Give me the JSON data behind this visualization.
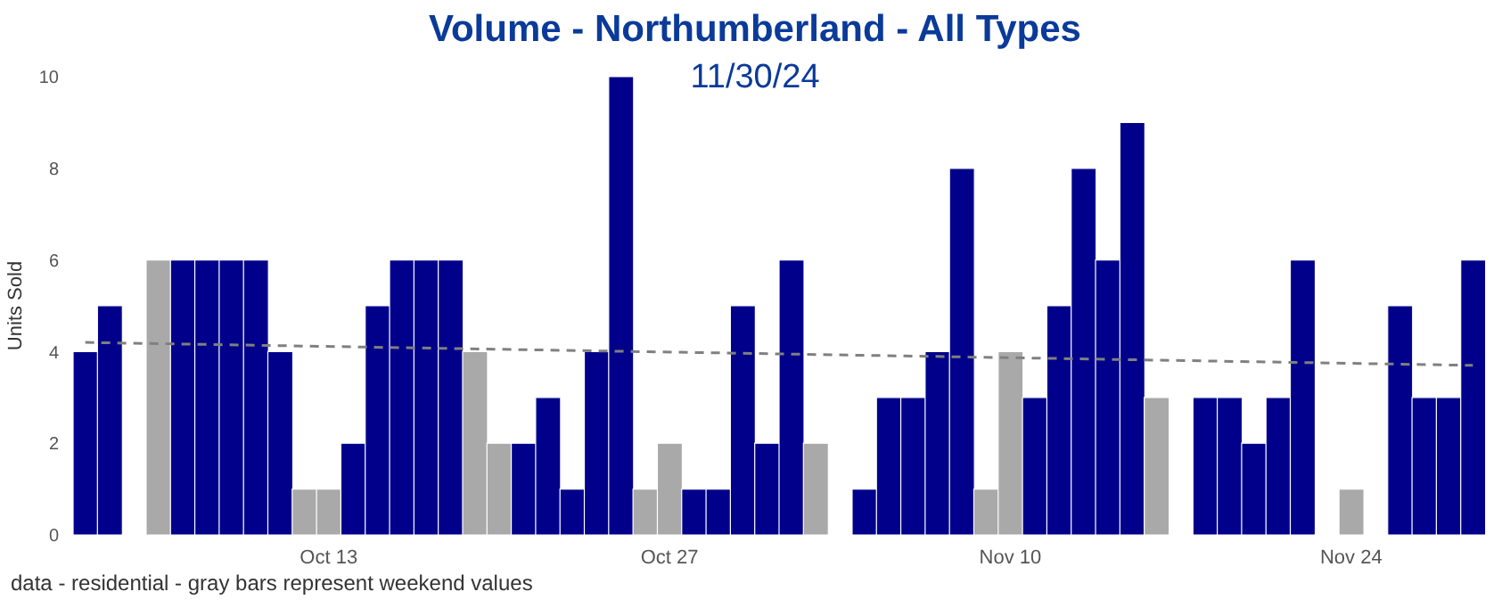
{
  "chart_data": {
    "type": "bar",
    "title": "Volume - Northumberland - All Types",
    "subtitle": "11/30/24",
    "ylabel": "Units Sold",
    "categories": [
      null,
      null,
      null,
      null,
      null,
      null,
      null,
      null,
      null,
      null,
      "Oct 13",
      null,
      null,
      null,
      null,
      null,
      null,
      null,
      null,
      null,
      null,
      null,
      null,
      null,
      "Oct 27",
      null,
      null,
      null,
      null,
      null,
      null,
      null,
      null,
      null,
      null,
      null,
      null,
      null,
      "Nov 10",
      null,
      null,
      null,
      null,
      null,
      null,
      null,
      null,
      null,
      null,
      null,
      null,
      null,
      "Nov 24",
      null,
      null,
      null,
      null,
      null
    ],
    "series": [
      {
        "values": [
          4,
          5,
          0,
          6,
          6,
          6,
          6,
          6,
          4,
          1,
          1,
          2,
          5,
          6,
          6,
          6,
          4,
          2,
          2,
          3,
          1,
          4,
          10,
          1,
          2,
          1,
          1,
          5,
          2,
          6,
          2,
          0,
          1,
          3,
          3,
          4,
          8,
          1,
          4,
          3,
          5,
          8,
          6,
          9,
          3,
          0,
          3,
          3,
          2,
          3,
          6,
          0,
          1,
          0,
          5,
          3,
          3,
          6
        ],
        "colors": [
          "#00008b",
          "#00008b",
          "#a9a9a9",
          "#a9a9a9",
          "#00008b",
          "#00008b",
          "#00008b",
          "#00008b",
          "#00008b",
          "#a9a9a9",
          "#a9a9a9",
          "#00008b",
          "#00008b",
          "#00008b",
          "#00008b",
          "#00008b",
          "#a9a9a9",
          "#a9a9a9",
          "#00008b",
          "#00008b",
          "#00008b",
          "#00008b",
          "#00008b",
          "#a9a9a9",
          "#a9a9a9",
          "#00008b",
          "#00008b",
          "#00008b",
          "#00008b",
          "#00008b",
          "#a9a9a9",
          "#a9a9a9",
          "#00008b",
          "#00008b",
          "#00008b",
          "#00008b",
          "#00008b",
          "#a9a9a9",
          "#a9a9a9",
          "#00008b",
          "#00008b",
          "#00008b",
          "#00008b",
          "#00008b",
          "#a9a9a9",
          "#a9a9a9",
          "#00008b",
          "#00008b",
          "#00008b",
          "#00008b",
          "#00008b",
          "#a9a9a9",
          "#a9a9a9",
          "#00008b",
          "#00008b",
          "#00008b",
          "#00008b",
          "#00008b"
        ]
      },
      {
        "type": "line",
        "color": "#808080",
        "line_style": "dashed",
        "marker": "none",
        "values": [
          4.2,
          null,
          null,
          null,
          null,
          null,
          null,
          null,
          null,
          null,
          null,
          null,
          null,
          null,
          null,
          null,
          null,
          null,
          null,
          null,
          null,
          null,
          null,
          null,
          null,
          null,
          null,
          null,
          null,
          null,
          null,
          null,
          null,
          null,
          null,
          null,
          null,
          null,
          null,
          null,
          null,
          null,
          null,
          null,
          null,
          null,
          null,
          null,
          null,
          null,
          null,
          null,
          null,
          null,
          null,
          null,
          null,
          3.7
        ]
      }
    ],
    "ylim": [
      0,
      10
    ],
    "yticks": [
      0,
      2,
      4,
      6,
      8,
      10
    ],
    "grid": false,
    "legend": false,
    "annotations": [
      "data - residential - gray bars represent weekend values"
    ]
  }
}
